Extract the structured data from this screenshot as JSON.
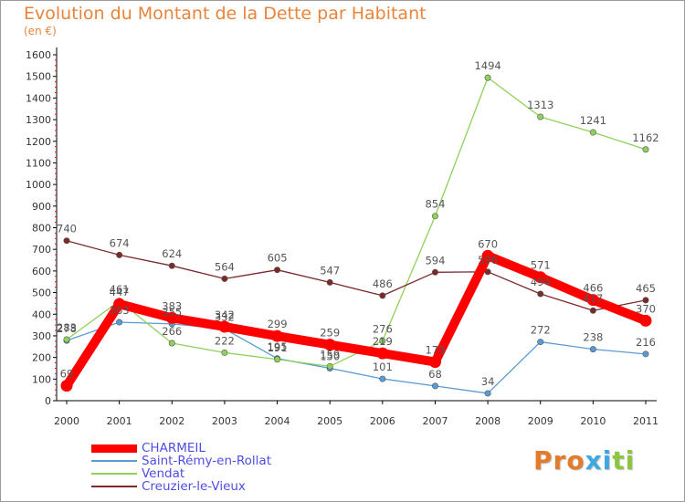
{
  "title": "Evolution du Montant de la Dette par Habitant",
  "subtitle": "(en €)",
  "logo": {
    "text": "Proxiti",
    "letter_colors": [
      "#e47a2c",
      "#e47a2c",
      "#e47a2c",
      "#3fa8e0",
      "#3fa8e0",
      "#8cc63f",
      "#8cc63f"
    ]
  },
  "chart_data": {
    "type": "line",
    "title": "Evolution du Montant de la Dette par Habitant",
    "subtitle": "(en €)",
    "x": [
      "2000",
      "2001",
      "2002",
      "2003",
      "2004",
      "2005",
      "2006",
      "2007",
      "2008",
      "2009",
      "2010",
      "2011"
    ],
    "y_ticks": [
      "0",
      "100",
      "200",
      "300",
      "400",
      "500",
      "600",
      "700",
      "800",
      "900",
      "1000",
      "1100",
      "1200",
      "1300",
      "1400",
      "1500",
      "1600"
    ],
    "ylim": [
      0,
      1600
    ],
    "grid": false,
    "legend_position": "bottom-left",
    "series": [
      {
        "name": "CHARMEIL",
        "color": "#ff0000",
        "style": "bold",
        "values": [
          69,
          447,
          383,
          342,
          299,
          259,
          219,
          179,
          670,
          571,
          466,
          370
        ],
        "labels": [
          "69",
          "447",
          "383",
          "342",
          "299",
          "259",
          "219",
          "179",
          "670",
          "571",
          "466",
          "370"
        ]
      },
      {
        "name": "Saint-Rémy-en-Rollat",
        "color": "#5b9bd5",
        "values": [
          278,
          363,
          355,
          332,
          195,
          150,
          101,
          68,
          34,
          272,
          238,
          216
        ],
        "labels": [
          "278",
          "363",
          "355",
          "332",
          "195",
          "150",
          "101",
          "68",
          "34",
          "272",
          "238",
          "216"
        ]
      },
      {
        "name": "Vendat",
        "color": "#8fd15a",
        "values": [
          283,
          461,
          266,
          222,
          191,
          159,
          276,
          854,
          1494,
          1313,
          1241,
          1162
        ],
        "labels": [
          "283",
          "461",
          "266",
          "222",
          "191",
          "159",
          "276",
          "854",
          "1494",
          "1313",
          "1241",
          "1162"
        ]
      },
      {
        "name": "Creuzier-le-Vieux",
        "color": "#7b2a2a",
        "values": [
          740,
          674,
          624,
          564,
          605,
          547,
          486,
          594,
          596,
          494,
          417,
          465
        ],
        "labels": [
          "740",
          "674",
          "624",
          "564",
          "605",
          "547",
          "486",
          "594",
          "596",
          "494",
          "417",
          "465"
        ]
      }
    ]
  }
}
